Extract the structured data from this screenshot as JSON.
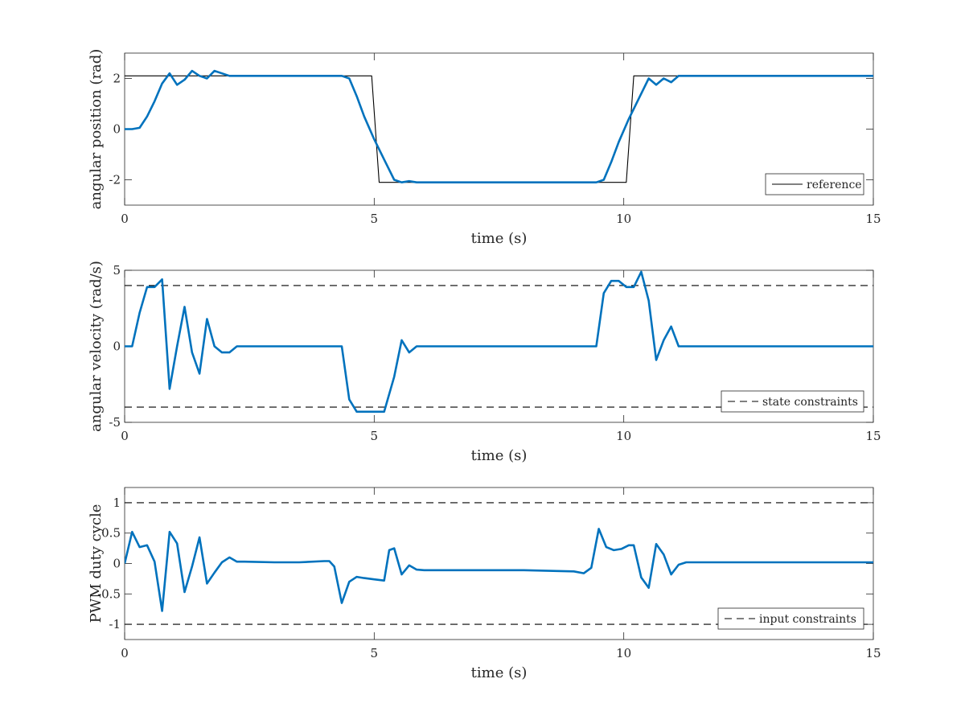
{
  "chart_data": [
    {
      "type": "line",
      "xlabel": "time (s)",
      "ylabel": "angular position (rad)",
      "xlim": [
        0,
        15
      ],
      "ylim": [
        -3,
        3
      ],
      "xticks": [
        "0",
        "5",
        "10",
        "15"
      ],
      "yticks": [
        "-2",
        "0",
        "2"
      ],
      "grid": false,
      "legend": {
        "placement": "bottom-right",
        "entries": [
          "reference"
        ]
      },
      "series": [
        {
          "name": "reference",
          "color": "#000000",
          "style": "solid",
          "x": [
            0,
            4.95,
            5.1,
            10.05,
            10.2,
            15
          ],
          "y": [
            2.1,
            2.1,
            -2.1,
            -2.1,
            2.1,
            2.1
          ]
        },
        {
          "color": "#0072BD",
          "style": "solid",
          "x": [
            0,
            0.15,
            0.3,
            0.45,
            0.6,
            0.75,
            0.9,
            1.05,
            1.2,
            1.35,
            1.5,
            1.65,
            1.8,
            1.95,
            2.1,
            2.25,
            3,
            4,
            4.35,
            4.5,
            4.65,
            4.8,
            5.0,
            5.2,
            5.4,
            5.55,
            5.7,
            5.85,
            6.0,
            7,
            8,
            9,
            9.45,
            9.6,
            9.75,
            9.9,
            10.1,
            10.3,
            10.5,
            10.65,
            10.8,
            10.95,
            11.1,
            11.25,
            12,
            13,
            14,
            15
          ],
          "y": [
            0,
            0,
            0.05,
            0.5,
            1.1,
            1.8,
            2.2,
            1.75,
            1.95,
            2.3,
            2.1,
            2.0,
            2.3,
            2.2,
            2.1,
            2.1,
            2.1,
            2.1,
            2.1,
            2.0,
            1.3,
            0.5,
            -0.4,
            -1.2,
            -2.0,
            -2.1,
            -2.05,
            -2.1,
            -2.1,
            -2.1,
            -2.1,
            -2.1,
            -2.1,
            -2.0,
            -1.3,
            -0.5,
            0.4,
            1.2,
            2.0,
            1.75,
            2.0,
            1.85,
            2.1,
            2.1,
            2.1,
            2.1,
            2.1,
            2.1
          ]
        }
      ]
    },
    {
      "type": "line",
      "xlabel": "time (s)",
      "ylabel": "angular velocity (rad/s)",
      "xlim": [
        0,
        15
      ],
      "ylim": [
        -5,
        5
      ],
      "xticks": [
        "0",
        "5",
        "10",
        "15"
      ],
      "yticks": [
        "-5",
        "0",
        "5"
      ],
      "grid": false,
      "legend": {
        "placement": "bottom-right",
        "entries": [
          "state constraints"
        ]
      },
      "series": [
        {
          "name": "state constraints",
          "color": "#000000",
          "style": "dashed",
          "x": [
            0,
            15
          ],
          "y": [
            4,
            4
          ]
        },
        {
          "color": "#000000",
          "style": "dashed",
          "x": [
            0,
            15
          ],
          "y": [
            -4,
            -4
          ]
        },
        {
          "color": "#0072BD",
          "style": "solid",
          "x": [
            0,
            0.15,
            0.3,
            0.45,
            0.6,
            0.75,
            0.9,
            1.05,
            1.2,
            1.35,
            1.5,
            1.65,
            1.8,
            1.95,
            2.1,
            2.25,
            3,
            4,
            4.35,
            4.5,
            4.65,
            4.8,
            5.0,
            5.2,
            5.4,
            5.55,
            5.7,
            5.85,
            6.0,
            7,
            8,
            9,
            9.45,
            9.6,
            9.75,
            9.9,
            10.05,
            10.2,
            10.35,
            10.5,
            10.65,
            10.8,
            10.95,
            11.1,
            11.25,
            12,
            13,
            14,
            15
          ],
          "y": [
            0,
            0,
            2.2,
            3.9,
            3.9,
            4.4,
            -2.8,
            0,
            2.6,
            -0.4,
            -1.8,
            1.8,
            0,
            -0.4,
            -0.4,
            0,
            0,
            0,
            0,
            -3.5,
            -4.3,
            -4.3,
            -4.3,
            -4.3,
            -2.0,
            0.4,
            -0.4,
            0,
            0,
            0,
            0,
            0,
            0,
            3.5,
            4.3,
            4.3,
            3.9,
            3.9,
            4.9,
            3.0,
            -0.9,
            0.4,
            1.3,
            0,
            0,
            0,
            0,
            0,
            0
          ]
        }
      ]
    },
    {
      "type": "line",
      "xlabel": "time (s)",
      "ylabel": "PWM duty cycle",
      "xlim": [
        0,
        15
      ],
      "ylim": [
        -1.25,
        1.25
      ],
      "xticks": [
        "0",
        "5",
        "10",
        "15"
      ],
      "yticks": [
        "-1",
        "-0.5",
        "0",
        "0.5",
        "1"
      ],
      "grid": false,
      "legend": {
        "placement": "bottom-right",
        "entries": [
          "input constraints"
        ]
      },
      "series": [
        {
          "name": "input constraints",
          "color": "#000000",
          "style": "dashed",
          "x": [
            0,
            15
          ],
          "y": [
            1,
            1
          ]
        },
        {
          "color": "#000000",
          "style": "dashed",
          "x": [
            0,
            15
          ],
          "y": [
            -1,
            -1
          ]
        },
        {
          "color": "#0072BD",
          "style": "solid",
          "x": [
            0,
            0.15,
            0.3,
            0.45,
            0.6,
            0.75,
            0.9,
            1.05,
            1.2,
            1.35,
            1.5,
            1.65,
            1.8,
            1.95,
            2.1,
            2.25,
            2.4,
            3,
            3.5,
            4,
            4.1,
            4.2,
            4.35,
            4.5,
            4.65,
            4.8,
            5.0,
            5.2,
            5.3,
            5.4,
            5.55,
            5.7,
            5.85,
            6.0,
            7,
            8,
            9,
            9.2,
            9.35,
            9.5,
            9.65,
            9.8,
            9.95,
            10.1,
            10.2,
            10.35,
            10.5,
            10.65,
            10.8,
            10.95,
            11.1,
            11.25,
            12,
            13,
            14,
            15
          ],
          "y": [
            0,
            0.52,
            0.27,
            0.3,
            0.03,
            -0.78,
            0.52,
            0.33,
            -0.47,
            -0.05,
            0.43,
            -0.33,
            -0.15,
            0.02,
            0.1,
            0.03,
            0.03,
            0.02,
            0.02,
            0.04,
            0.04,
            -0.05,
            -0.65,
            -0.3,
            -0.22,
            -0.24,
            -0.26,
            -0.28,
            0.22,
            0.25,
            -0.18,
            -0.03,
            -0.1,
            -0.11,
            -0.11,
            -0.11,
            -0.13,
            -0.16,
            -0.07,
            0.57,
            0.27,
            0.22,
            0.24,
            0.3,
            0.3,
            -0.23,
            -0.4,
            0.32,
            0.15,
            -0.18,
            -0.02,
            0.02,
            0.02,
            0.02,
            0.02,
            0.02
          ]
        }
      ]
    }
  ]
}
